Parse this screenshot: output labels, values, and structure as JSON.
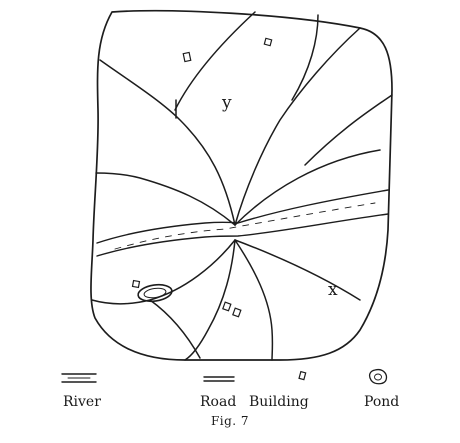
{
  "map": {
    "labels": {
      "y": "y",
      "x": "x"
    }
  },
  "legend": {
    "river": "River",
    "road": "Road",
    "building": "Building",
    "pond": "Pond"
  },
  "caption": "Fig. 7"
}
